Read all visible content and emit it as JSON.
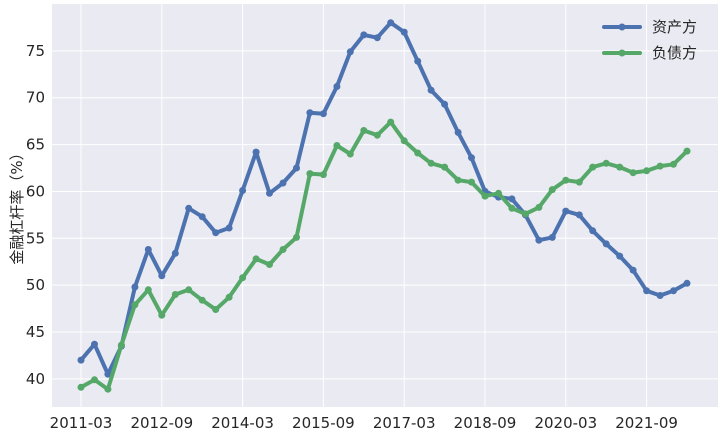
{
  "chart_data": {
    "type": "line",
    "ylabel": "金融杠杆率（%）",
    "xlabel": "",
    "title": "",
    "ylim": [
      37.0,
      80.0
    ],
    "grid": true,
    "legend_position": "top-right",
    "x_tick_labels": [
      "2011-03",
      "2012-09",
      "2014-03",
      "2015-09",
      "2017-03",
      "2018-09",
      "2020-03",
      "2021-09"
    ],
    "y_ticks": [
      40,
      45,
      50,
      55,
      60,
      65,
      70,
      75
    ],
    "x": [
      "2011-03",
      "2011-06",
      "2011-09",
      "2011-12",
      "2012-03",
      "2012-06",
      "2012-09",
      "2012-12",
      "2013-03",
      "2013-06",
      "2013-09",
      "2013-12",
      "2014-03",
      "2014-06",
      "2014-09",
      "2014-12",
      "2015-03",
      "2015-06",
      "2015-09",
      "2015-12",
      "2016-03",
      "2016-06",
      "2016-09",
      "2016-12",
      "2017-03",
      "2017-06",
      "2017-09",
      "2017-12",
      "2018-03",
      "2018-06",
      "2018-09",
      "2018-12",
      "2019-03",
      "2019-06",
      "2019-09",
      "2019-12",
      "2020-03",
      "2020-06",
      "2020-09",
      "2020-12",
      "2021-03",
      "2021-06",
      "2021-09",
      "2021-12",
      "2022-03",
      "2022-06"
    ],
    "series": [
      {
        "name": "资产方",
        "color": "#4C72B0",
        "values": [
          42.0,
          43.7,
          40.5,
          43.5,
          49.8,
          53.8,
          51.0,
          53.4,
          58.2,
          57.3,
          55.6,
          56.1,
          60.1,
          64.2,
          59.8,
          60.9,
          62.5,
          68.4,
          68.3,
          71.2,
          74.9,
          76.7,
          76.4,
          78.0,
          77.0,
          73.9,
          70.8,
          69.3,
          66.3,
          63.6,
          60.0,
          59.4,
          59.2,
          57.5,
          54.8,
          55.1,
          57.9,
          57.5,
          55.8,
          54.4,
          53.1,
          51.6,
          49.4,
          48.9,
          49.4,
          50.2
        ]
      },
      {
        "name": "负债方",
        "color": "#55A868",
        "values": [
          39.1,
          39.9,
          38.9,
          43.6,
          47.9,
          49.5,
          46.8,
          49.0,
          49.5,
          48.4,
          47.4,
          48.7,
          50.8,
          52.8,
          52.2,
          53.8,
          55.1,
          61.9,
          61.8,
          64.9,
          64.0,
          66.5,
          66.0,
          67.4,
          65.4,
          64.1,
          63.0,
          62.6,
          61.2,
          61.0,
          59.5,
          59.8,
          58.2,
          57.6,
          58.3,
          60.2,
          61.2,
          61.0,
          62.6,
          63.0,
          62.6,
          62.0,
          62.2,
          62.7,
          62.9,
          64.3
        ]
      }
    ]
  }
}
